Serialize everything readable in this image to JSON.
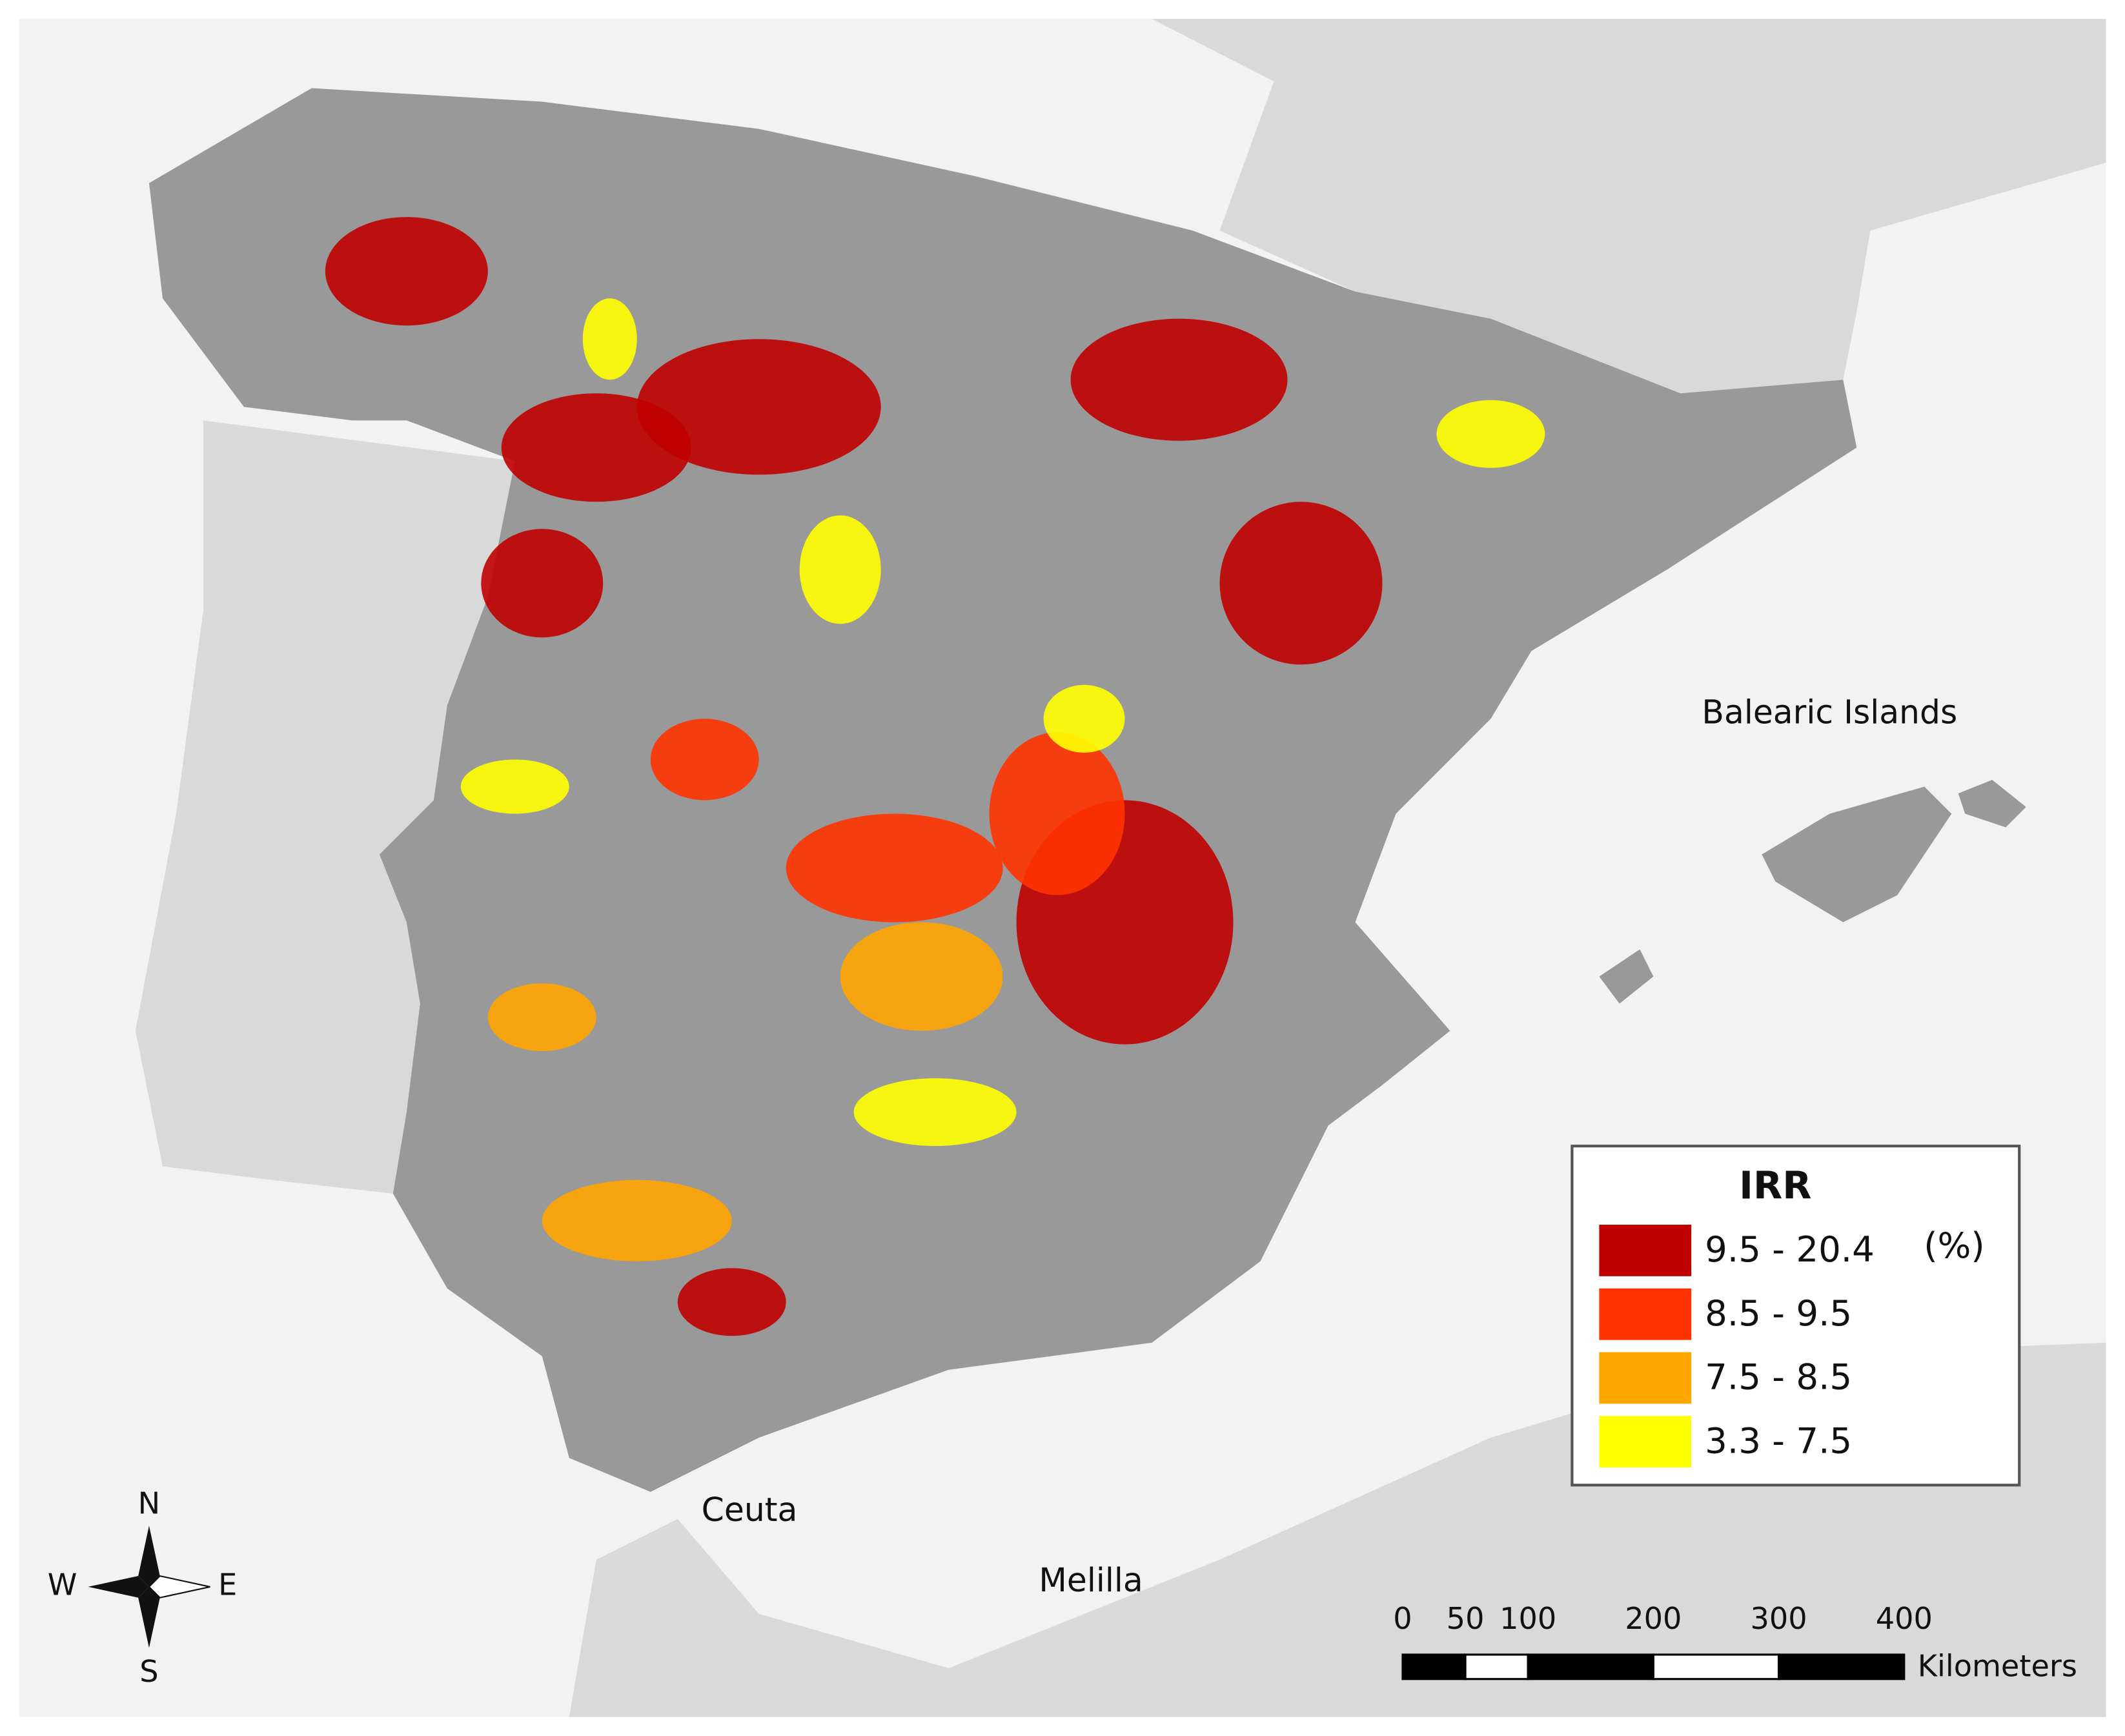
{
  "map": {
    "labels": [
      {
        "text": "Balearic Islands"
      },
      {
        "text": "Ceuta"
      },
      {
        "text": "Melilla"
      }
    ]
  },
  "legend": {
    "title": "IRR",
    "unit": "(%)",
    "items": [
      {
        "label": "9.5 - 20.4",
        "color": "#c00000"
      },
      {
        "label": "8.5 - 9.5",
        "color": "#ff3300"
      },
      {
        "label": "7.5 - 8.5",
        "color": "#ffa500"
      },
      {
        "label": "3.3 - 7.5",
        "color": "#ffff00"
      }
    ]
  },
  "compass": {
    "n": "N",
    "e": "E",
    "s": "S",
    "w": "W"
  },
  "scale_bar": {
    "ticks": [
      0,
      50,
      100,
      200,
      300,
      400
    ],
    "unit": "Kilometers"
  }
}
